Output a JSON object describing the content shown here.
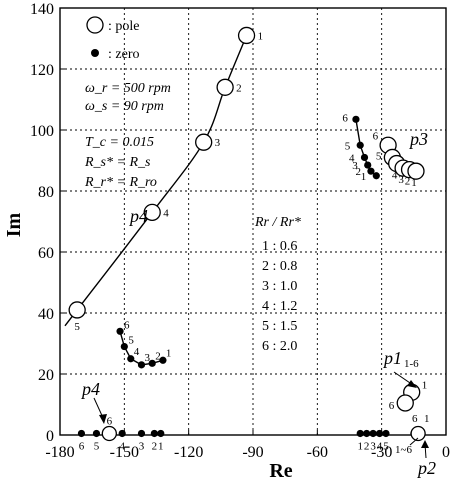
{
  "chart_data": {
    "type": "scatter",
    "title": "",
    "xlabel": "Re",
    "ylabel": "Im",
    "xlim": [
      -180,
      0
    ],
    "ylim": [
      0,
      140
    ],
    "xticks": [
      "-180",
      "-150",
      "-120",
      "-90",
      "-60",
      "-30",
      "0"
    ],
    "yticks": [
      "0",
      "20",
      "40",
      "60",
      "80",
      "100",
      "120",
      "140"
    ],
    "grid": true,
    "legend": {
      "placement": "top-left",
      "entries": [
        {
          "marker": "open-circle",
          "label": ": pole"
        },
        {
          "marker": "filled-circle",
          "label": ": zero"
        }
      ]
    },
    "params": [
      "ω_r = 500 rpm",
      "ω_s = 90 rpm",
      "T_c = 0.015",
      "R_s* = R_s",
      "R_r* = R_ro"
    ],
    "ratio_table": {
      "header": "Rr / Rr*",
      "rows": [
        "1 : 0.6",
        "2 : 0.8",
        "3 : 1.0",
        "4 : 1.2",
        "5 : 1.5",
        "6 : 2.0"
      ]
    },
    "series": [
      {
        "name": "p4",
        "marker": "pole",
        "connect": true,
        "points": [
          {
            "x": -93,
            "y": 131,
            "label": "1"
          },
          {
            "x": -103,
            "y": 114,
            "label": "2"
          },
          {
            "x": -113,
            "y": 96,
            "label": "3"
          },
          {
            "x": -137,
            "y": 73,
            "label": "4"
          },
          {
            "x": -172,
            "y": 41,
            "label": "5"
          }
        ]
      },
      {
        "name": "p3",
        "marker": "pole",
        "connect": false,
        "points": [
          {
            "x": -27,
            "y": 95,
            "label": "6"
          },
          {
            "x": -25,
            "y": 91,
            "label": "5"
          },
          {
            "x": -23,
            "y": 89,
            "label": "4"
          },
          {
            "x": -20,
            "y": 87.5,
            "label": "3"
          },
          {
            "x": -17,
            "y": 87,
            "label": "2"
          },
          {
            "x": -14,
            "y": 86.5,
            "label": "1"
          }
        ]
      },
      {
        "name": "",
        "marker": "zero",
        "connect": true,
        "points": [
          {
            "x": -42,
            "y": 103.5,
            "label": "6"
          },
          {
            "x": -40,
            "y": 95,
            "label": "5"
          },
          {
            "x": -38,
            "y": 91,
            "label": "4"
          },
          {
            "x": -36.5,
            "y": 88.5,
            "label": "3"
          },
          {
            "x": -35,
            "y": 86.5,
            "label": "2"
          },
          {
            "x": -32.5,
            "y": 85,
            "label": "1"
          }
        ]
      },
      {
        "name": "",
        "marker": "zero",
        "connect": true,
        "points": [
          {
            "x": -152,
            "y": 34,
            "label": "6"
          },
          {
            "x": -150,
            "y": 29,
            "label": "5"
          },
          {
            "x": -147,
            "y": 25,
            "label": "4"
          },
          {
            "x": -142,
            "y": 23,
            "label": "3"
          },
          {
            "x": -137,
            "y": 23.5,
            "label": "2"
          },
          {
            "x": -132,
            "y": 24.5,
            "label": "1"
          }
        ]
      },
      {
        "name": "p1 1-6",
        "marker": "pole",
        "connect": false,
        "points": [
          {
            "x": -16,
            "y": 14,
            "label": "1"
          },
          {
            "x": -19,
            "y": 10.5,
            "label": "6"
          }
        ]
      },
      {
        "name": "p4",
        "marker": "pole",
        "connect": false,
        "points": [
          {
            "x": -157,
            "y": 0.5,
            "label": "6"
          }
        ]
      },
      {
        "name": "",
        "marker": "zero",
        "connect": false,
        "points": [
          {
            "x": -170,
            "y": 0.5,
            "label": "6"
          },
          {
            "x": -163,
            "y": 0.5,
            "label": "5"
          },
          {
            "x": -151,
            "y": 0.5,
            "label": "4"
          },
          {
            "x": -142,
            "y": 0.5,
            "label": "3"
          },
          {
            "x": -136,
            "y": 0.5,
            "label": "2"
          },
          {
            "x": -133,
            "y": 0.5,
            "label": "1"
          }
        ]
      },
      {
        "name": "",
        "marker": "zero",
        "connect": false,
        "points": [
          {
            "x": -40,
            "y": 0.5,
            "label": "1"
          },
          {
            "x": -37,
            "y": 0.5,
            "label": "2"
          },
          {
            "x": -34,
            "y": 0.5,
            "label": "3"
          },
          {
            "x": -31,
            "y": 0.5,
            "label": "4"
          },
          {
            "x": -28,
            "y": 0.5,
            "label": "5"
          },
          {
            "x": -15,
            "y": 0.5,
            "label": "6"
          }
        ]
      },
      {
        "name": "p2",
        "marker": "pole",
        "connect": false,
        "points": [
          {
            "x": -13,
            "y": 0.5,
            "label": "1-6"
          }
        ]
      }
    ],
    "annotations": {
      "p3": "p3",
      "p4_upper": "p4",
      "p4_lower": "p4",
      "p1": "p1",
      "p1_sub": "1-6",
      "p2": "p2",
      "zero_small_6": "6",
      "zero_small_1": "1",
      "zero_small_16": "1~6"
    }
  }
}
